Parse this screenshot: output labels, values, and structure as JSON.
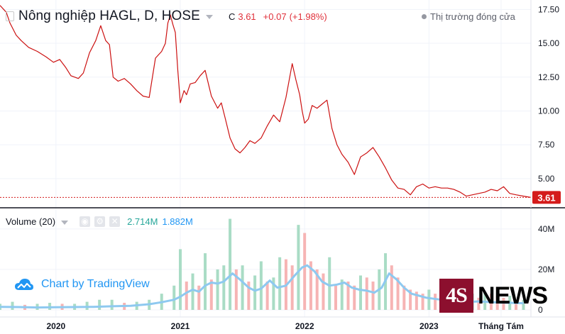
{
  "header": {
    "title": "Nông nghiệp HAGL, D, HOSE",
    "ohlc_label": "C",
    "close": "3.61",
    "change": "+0.07",
    "change_pct": "(+1.98%)",
    "market_status": "Thị trường đóng cửa"
  },
  "volume_legend": {
    "label": "Volume (20)",
    "value": "2.714M",
    "ma_value": "1.882M"
  },
  "watermark": {
    "text": "Chart by TradingView"
  },
  "logo": {
    "part1": "4S",
    "part2": "NEWS"
  },
  "colors": {
    "price_line": "#cc1111",
    "last_price_badge": "#d41b1b",
    "volume_up": "#a9dcc5",
    "volume_down": "#f6b4b4",
    "volume_ma": "#8ec9f0",
    "text_red": "#e0303a"
  },
  "chart_data": [
    {
      "type": "line",
      "title": "Nông nghiệp HAGL, D, HOSE",
      "x_range": [
        2019.55,
        2023.82
      ],
      "ylim": [
        3.0,
        18.2
      ],
      "y_ticks": [
        5.0,
        7.5,
        10.0,
        12.5,
        15.0,
        17.5
      ],
      "y_tick_labels": [
        "5.00",
        "7.50",
        "10.00",
        "12.50",
        "15.00",
        "17.50"
      ],
      "x_ticks": [
        2020,
        2021,
        2022,
        2023,
        2023.58
      ],
      "x_tick_labels": [
        "2020",
        "2021",
        "2022",
        "2023",
        "Tháng Tám"
      ],
      "last_price": 3.61,
      "last_price_label": "3.61",
      "series": [
        {
          "x": [
            2019.55,
            2019.6,
            2019.63,
            2019.68,
            2019.72,
            2019.78,
            2019.85,
            2019.92,
            2019.98,
            2020.03,
            2020.08,
            2020.12,
            2020.18,
            2020.22,
            2020.27,
            2020.32,
            2020.36,
            2020.4,
            2020.43,
            2020.46,
            2020.5,
            2020.55,
            2020.6,
            2020.65,
            2020.7,
            2020.75,
            2020.8,
            2020.85,
            2020.88,
            2020.9,
            2020.92,
            2020.94,
            2020.96,
            2020.98,
            2021.0,
            2021.03,
            2021.05,
            2021.08,
            2021.12,
            2021.16,
            2021.2,
            2021.25,
            2021.3,
            2021.33,
            2021.36,
            2021.4,
            2021.44,
            2021.48,
            2021.52,
            2021.56,
            2021.6,
            2021.65,
            2021.7,
            2021.75,
            2021.8,
            2021.85,
            2021.9,
            2021.93,
            2021.96,
            2021.98,
            2022.0,
            2022.03,
            2022.06,
            2022.1,
            2022.14,
            2022.18,
            2022.22,
            2022.26,
            2022.3,
            2022.35,
            2022.4,
            2022.45,
            2022.5,
            2022.55,
            2022.6,
            2022.65,
            2022.7,
            2022.75,
            2022.8,
            2022.85,
            2022.9,
            2022.95,
            2023.0,
            2023.05,
            2023.1,
            2023.15,
            2023.2,
            2023.25,
            2023.3,
            2023.35,
            2023.4,
            2023.45,
            2023.5,
            2023.55,
            2023.6,
            2023.65,
            2023.7,
            2023.76,
            2023.82
          ],
          "values": [
            17.8,
            17.3,
            16.5,
            15.6,
            15.2,
            14.7,
            14.4,
            14.0,
            13.6,
            13.8,
            13.2,
            12.6,
            12.4,
            12.8,
            14.3,
            15.2,
            16.3,
            15.2,
            14.9,
            12.5,
            12.2,
            12.4,
            12.0,
            11.5,
            11.1,
            11.0,
            13.9,
            14.4,
            15.0,
            16.5,
            17.1,
            16.4,
            15.8,
            13.0,
            10.6,
            11.5,
            11.2,
            12.0,
            12.1,
            12.6,
            13.0,
            11.1,
            10.2,
            10.6,
            9.5,
            8.0,
            7.2,
            6.9,
            7.3,
            7.8,
            7.6,
            8.0,
            8.9,
            9.7,
            9.2,
            11.0,
            13.5,
            12.3,
            11.2,
            10.0,
            9.1,
            9.4,
            10.4,
            10.2,
            10.5,
            10.8,
            8.7,
            7.5,
            6.8,
            6.2,
            5.3,
            6.6,
            6.9,
            7.3,
            6.6,
            5.8,
            4.9,
            4.3,
            4.2,
            3.8,
            4.4,
            4.6,
            4.3,
            4.4,
            4.3,
            4.3,
            4.2,
            4.0,
            3.7,
            3.8,
            3.9,
            4.0,
            4.2,
            4.1,
            4.4,
            3.9,
            3.8,
            3.7,
            3.61
          ]
        }
      ]
    },
    {
      "type": "bar",
      "title": "Volume (20)",
      "ylim": [
        0,
        48
      ],
      "y_ticks": [
        0,
        20,
        40
      ],
      "y_tick_labels": [
        "0",
        "20M",
        "40M"
      ],
      "series": [
        {
          "name": "Volume (20)",
          "x": [
            2019.55,
            2019.65,
            2019.75,
            2019.85,
            2019.95,
            2020.05,
            2020.15,
            2020.25,
            2020.35,
            2020.45,
            2020.55,
            2020.65,
            2020.75,
            2020.85,
            2020.95,
            2021.0,
            2021.05,
            2021.1,
            2021.15,
            2021.2,
            2021.25,
            2021.3,
            2021.35,
            2021.4,
            2021.45,
            2021.5,
            2021.55,
            2021.6,
            2021.65,
            2021.7,
            2021.75,
            2021.8,
            2021.85,
            2021.9,
            2021.95,
            2022.0,
            2022.05,
            2022.1,
            2022.15,
            2022.2,
            2022.25,
            2022.3,
            2022.35,
            2022.4,
            2022.45,
            2022.5,
            2022.55,
            2022.6,
            2022.65,
            2022.7,
            2022.75,
            2022.8,
            2022.85,
            2022.9,
            2022.95,
            2023.0,
            2023.05,
            2023.1,
            2023.15,
            2023.2,
            2023.25,
            2023.3,
            2023.35,
            2023.4,
            2023.45,
            2023.5,
            2023.55,
            2023.6,
            2023.65,
            2023.7,
            2023.76
          ],
          "values": [
            3,
            4,
            2.5,
            3,
            3.5,
            3,
            3,
            4,
            5,
            5,
            3.5,
            4,
            5,
            8,
            12,
            30,
            14,
            18,
            12,
            28,
            15,
            20,
            22,
            45,
            20,
            22,
            14,
            17,
            24,
            14,
            16,
            26,
            25,
            22,
            42,
            38,
            24,
            20,
            18,
            26,
            12,
            15,
            14,
            12,
            17,
            16,
            14,
            20,
            28,
            22,
            16,
            12,
            10,
            9,
            8,
            10,
            8,
            7,
            9,
            8,
            7,
            8,
            8,
            6,
            9,
            8,
            7,
            6,
            7,
            5,
            5
          ]
        },
        {
          "name": "MA",
          "x": [
            2019.55,
            2019.7,
            2019.85,
            2020.0,
            2020.15,
            2020.3,
            2020.45,
            2020.6,
            2020.75,
            2020.85,
            2020.95,
            2021.0,
            2021.05,
            2021.1,
            2021.15,
            2021.2,
            2021.25,
            2021.3,
            2021.35,
            2021.42,
            2021.48,
            2021.55,
            2021.6,
            2021.65,
            2021.72,
            2021.78,
            2021.85,
            2021.92,
            2021.98,
            2022.02,
            2022.08,
            2022.14,
            2022.2,
            2022.26,
            2022.32,
            2022.38,
            2022.44,
            2022.5,
            2022.56,
            2022.62,
            2022.68,
            2022.74,
            2022.8,
            2022.86,
            2022.92,
            2022.98,
            2023.04,
            2023.1,
            2023.16,
            2023.22,
            2023.28,
            2023.34,
            2023.4,
            2023.46,
            2023.52,
            2023.58,
            2023.64,
            2023.7,
            2023.76
          ],
          "values": [
            1.5,
            1.4,
            1.2,
            1.3,
            1.4,
            1.5,
            1.8,
            2.0,
            2.8,
            3.8,
            5.0,
            6.5,
            8.5,
            10.0,
            9.0,
            12.0,
            13.5,
            13.0,
            14.0,
            18.0,
            15.0,
            11.0,
            9.5,
            10.5,
            14.5,
            11.0,
            12.0,
            17.0,
            21.0,
            22.0,
            19.0,
            14.0,
            12.0,
            12.5,
            13.5,
            11.0,
            10.0,
            9.5,
            8.5,
            11.0,
            18.0,
            15.0,
            11.0,
            8.0,
            7.0,
            6.0,
            5.5,
            5.0,
            4.5,
            4.0,
            3.8,
            4.0,
            4.2,
            4.0,
            3.8,
            3.6,
            3.5,
            3.4,
            3.3
          ]
        }
      ]
    }
  ]
}
